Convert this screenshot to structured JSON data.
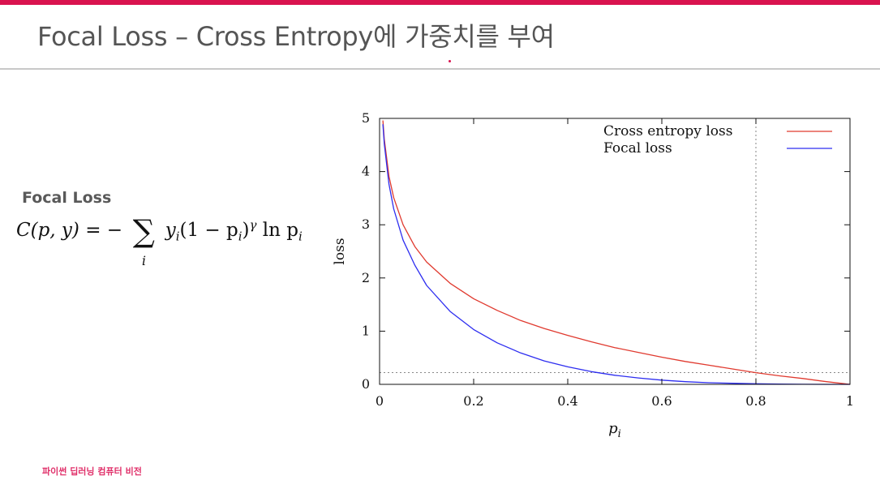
{
  "slide": {
    "title": "Focal Loss – Cross Entropy에 가중치를 부여",
    "section_heading": "Focal Loss",
    "footer": "파이썬 딥러닝 컴퓨터 비전"
  },
  "formula": {
    "lhs": "C(p, y) = −",
    "sum_symbol": "∑",
    "sum_index": "i",
    "term_y": "y",
    "sub_i": "i",
    "term_paren": "(1 − p",
    "term_close": ")",
    "gamma": "γ",
    "ln": " ln p"
  },
  "chart_data": {
    "type": "line",
    "xlabel": "p_i",
    "ylabel": "loss",
    "xlim": [
      0,
      1
    ],
    "ylim": [
      0,
      5
    ],
    "x_ticks": [
      "0",
      "0.2",
      "0.4",
      "0.6",
      "0.8",
      "1"
    ],
    "y_ticks": [
      "0",
      "1",
      "2",
      "3",
      "4",
      "5"
    ],
    "legend_position": "top-right",
    "grid": false,
    "series": [
      {
        "name": "Cross entropy loss",
        "color": "#e03a2f",
        "x": [
          0.007,
          0.01,
          0.02,
          0.03,
          0.05,
          0.075,
          0.1,
          0.15,
          0.2,
          0.25,
          0.3,
          0.35,
          0.4,
          0.45,
          0.5,
          0.55,
          0.6,
          0.65,
          0.7,
          0.75,
          0.8,
          0.85,
          0.9,
          0.95,
          1.0
        ],
        "y": [
          4.96,
          4.61,
          3.91,
          3.51,
          3.0,
          2.59,
          2.3,
          1.9,
          1.61,
          1.39,
          1.2,
          1.05,
          0.92,
          0.8,
          0.69,
          0.6,
          0.51,
          0.43,
          0.36,
          0.29,
          0.22,
          0.16,
          0.11,
          0.05,
          0.0
        ]
      },
      {
        "name": "Focal loss",
        "color": "#2d2df0",
        "x": [
          0.007,
          0.01,
          0.02,
          0.03,
          0.05,
          0.075,
          0.1,
          0.15,
          0.2,
          0.25,
          0.3,
          0.35,
          0.4,
          0.45,
          0.5,
          0.55,
          0.6,
          0.65,
          0.7,
          0.75,
          0.8,
          0.85,
          0.9,
          0.95,
          1.0
        ],
        "y": [
          4.89,
          4.52,
          3.76,
          3.3,
          2.71,
          2.24,
          1.86,
          1.37,
          1.03,
          0.78,
          0.59,
          0.44,
          0.33,
          0.24,
          0.17,
          0.12,
          0.08,
          0.05,
          0.03,
          0.02,
          0.01,
          0.004,
          0.001,
          0.0,
          0.0
        ]
      }
    ],
    "reference_lines": [
      {
        "axis": "x",
        "value": 0.8
      },
      {
        "axis": "y",
        "value": 0.22
      }
    ]
  }
}
